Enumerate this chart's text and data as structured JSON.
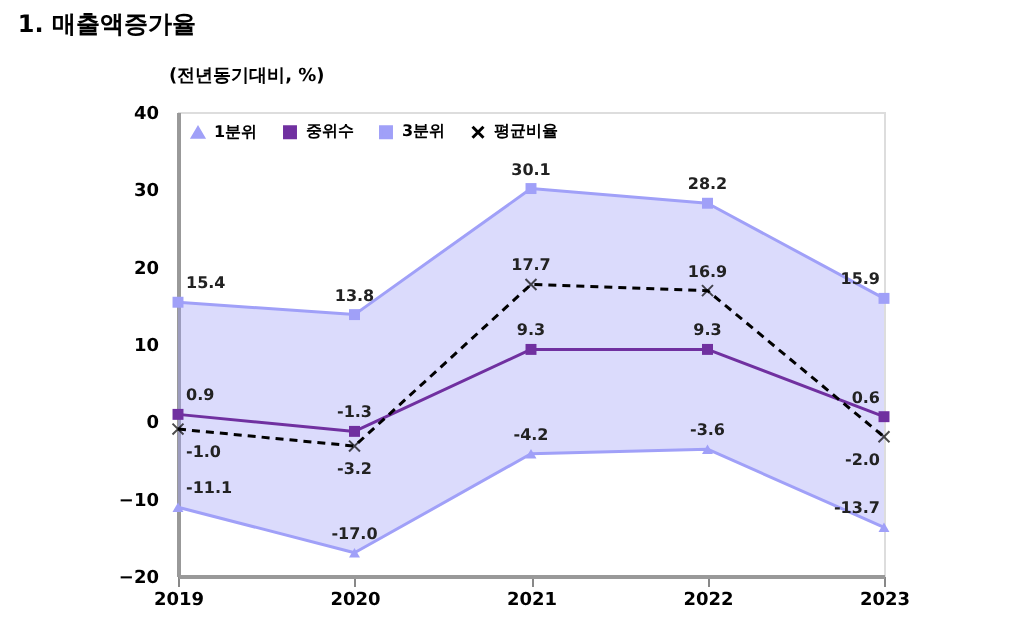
{
  "chart_data": {
    "type": "line",
    "title": "1. 매출액증가율",
    "ylabel": "(전년동기대비, %)",
    "categories": [
      "2019",
      "2020",
      "2021",
      "2022",
      "2023"
    ],
    "series": [
      {
        "name": "1분위",
        "color": "#a0a0f8",
        "marker": "triangle",
        "line_style": "solid",
        "values": [
          -11.1,
          -17.0,
          -4.2,
          -3.6,
          -13.7
        ],
        "value_labels": [
          "-11.1",
          "-17.0",
          "-4.2",
          "-3.6",
          "-13.7"
        ]
      },
      {
        "name": "중위수",
        "color": "#7030a0",
        "marker": "square",
        "line_style": "solid",
        "values": [
          0.9,
          -1.3,
          9.3,
          9.3,
          0.6
        ],
        "value_labels": [
          "0.9",
          "-1.3",
          "9.3",
          "9.3",
          "0.6"
        ],
        "lower": [
          -11.1,
          -17.0,
          -4.2,
          -3.6,
          -13.7
        ],
        "upper": [
          15.4,
          13.8,
          30.1,
          28.2,
          15.9
        ]
      },
      {
        "name": "3분위",
        "color": "#a0a0f8",
        "marker": "square",
        "line_style": "solid",
        "values": [
          15.4,
          13.8,
          30.1,
          28.2,
          15.9
        ],
        "value_labels": [
          "15.4",
          "13.8",
          "30.1",
          "28.2",
          "15.9"
        ]
      },
      {
        "name": "평균비율",
        "color": "#000000",
        "marker": "cross",
        "line_style": "dashed",
        "values": [
          -1.0,
          -3.2,
          17.7,
          16.9,
          -2.0
        ],
        "value_labels": [
          "-1.0",
          "-3.2",
          "17.7",
          "16.9",
          "-2.0"
        ]
      }
    ],
    "ylim": [
      -20,
      40
    ],
    "yticks": [
      -20,
      -10,
      0,
      10,
      20,
      30,
      40
    ],
    "grid": false,
    "legend": "top left"
  }
}
